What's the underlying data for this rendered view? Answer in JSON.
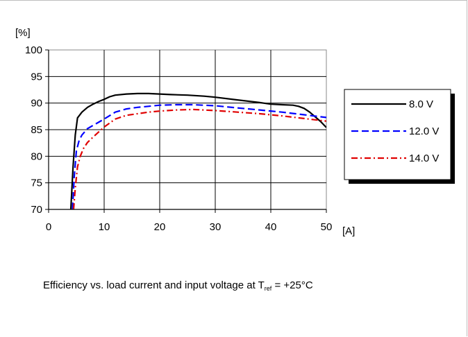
{
  "chart_data": {
    "type": "line",
    "caption": {
      "prefix": "Efficiency vs. load current and input voltage at T",
      "subscript": "ref",
      "suffix": " = +25°C"
    },
    "ylabel": "[%]",
    "xlabel": "[A]",
    "xlim": [
      0,
      50
    ],
    "ylim": [
      70,
      100
    ],
    "x_ticks": [
      "0",
      "10",
      "20",
      "30",
      "40",
      "50"
    ],
    "y_ticks": [
      "70",
      "75",
      "80",
      "85",
      "90",
      "95",
      "100"
    ],
    "grid": true,
    "legend_placement": "right",
    "series": [
      {
        "name": "8.0 V",
        "color": "#000000",
        "dash": "solid",
        "x": [
          4.0,
          4.4,
          4.8,
          5.2,
          6,
          7,
          8,
          9,
          10,
          11,
          12,
          14,
          16,
          18,
          20,
          22,
          25,
          28,
          30,
          34,
          38,
          40,
          42,
          44,
          45,
          46,
          47,
          48,
          49,
          50
        ],
        "y": [
          70,
          78,
          84,
          87.2,
          88.3,
          89.2,
          89.8,
          90.3,
          90.7,
          91.2,
          91.5,
          91.7,
          91.8,
          91.8,
          91.7,
          91.6,
          91.5,
          91.3,
          91.1,
          90.6,
          90.1,
          89.8,
          89.7,
          89.6,
          89.4,
          89.0,
          88.3,
          87.4,
          86.5,
          85.4
        ]
      },
      {
        "name": "12.0 V",
        "color": "#0000ff",
        "dash": "dashed",
        "x": [
          4.3,
          4.6,
          5,
          5.5,
          6,
          7,
          8,
          10,
          12,
          14,
          16,
          18,
          20,
          23,
          26,
          30,
          34,
          38,
          42,
          46,
          50
        ],
        "y": [
          70,
          76,
          81,
          83,
          84,
          85.2,
          85.8,
          87,
          88.3,
          88.9,
          89.2,
          89.4,
          89.6,
          89.7,
          89.7,
          89.5,
          89.1,
          88.7,
          88.3,
          87.8,
          87.3
        ]
      },
      {
        "name": "14.0 V",
        "color": "#e00000",
        "dash": "dashdot",
        "x": [
          4.5,
          4.8,
          5.2,
          5.7,
          6.3,
          7,
          8,
          10,
          12,
          14,
          16,
          18,
          20,
          23,
          26,
          30,
          34,
          38,
          42,
          46,
          50
        ],
        "y": [
          70,
          74,
          78,
          80,
          81.5,
          82.6,
          83.6,
          85.5,
          87,
          87.7,
          88,
          88.3,
          88.5,
          88.7,
          88.8,
          88.6,
          88.3,
          88,
          87.6,
          87.1,
          86.6
        ]
      }
    ]
  }
}
